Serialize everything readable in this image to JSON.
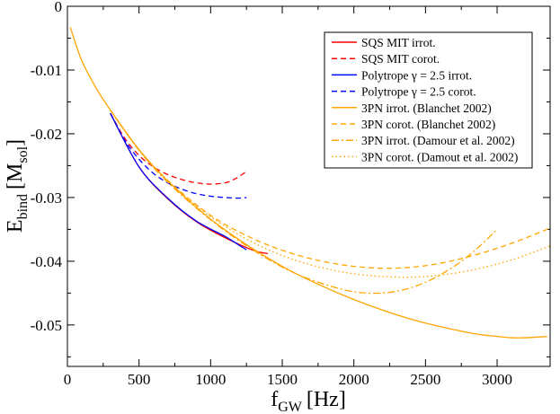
{
  "chart_data": {
    "type": "line",
    "xlabel": {
      "main": "f",
      "sub": "GW",
      "unit": "[Hz]"
    },
    "ylabel": {
      "main": "E",
      "sub": "bind",
      "unit_open": "[M",
      "unit_sub": "sol",
      "unit_close": "]"
    },
    "xlim": [
      0,
      3370
    ],
    "ylim": [
      -0.0565,
      0
    ],
    "xticks": [
      0,
      500,
      1000,
      1500,
      2000,
      2500,
      3000
    ],
    "xtick_labels": [
      "0",
      "500",
      "1000",
      "1500",
      "2000",
      "2500",
      "3000"
    ],
    "yticks": [
      0,
      -0.01,
      -0.02,
      -0.03,
      -0.04,
      -0.05
    ],
    "ytick_labels": [
      "0",
      "-0.01",
      "-0.02",
      "-0.03",
      "-0.04",
      "-0.05"
    ],
    "grid": false,
    "legend_position": "top-right",
    "series": [
      {
        "name": "SQS MIT irrot.",
        "color": "#ff0000",
        "dash": "solid",
        "x": [
          300,
          500,
          700,
          900,
          1100,
          1300,
          1400
        ],
        "y": [
          -0.0168,
          -0.0252,
          -0.0302,
          -0.0338,
          -0.0363,
          -0.0383,
          -0.0388
        ]
      },
      {
        "name": "SQS MIT corot.",
        "color": "#ff0000",
        "dash": "dashed",
        "x": [
          300,
          400,
          500,
          600,
          700,
          800,
          900,
          1000,
          1100,
          1150,
          1200,
          1250
        ],
        "y": [
          -0.0168,
          -0.0207,
          -0.0234,
          -0.0252,
          -0.0264,
          -0.0272,
          -0.0277,
          -0.0279,
          -0.0277,
          -0.0273,
          -0.0267,
          -0.0259
        ]
      },
      {
        "name": "Polytrope  γ = 2.5 irrot.",
        "color": "#0000ff",
        "dash": "solid",
        "x": [
          300,
          500,
          700,
          900,
          1100,
          1200,
          1250
        ],
        "y": [
          -0.0168,
          -0.0252,
          -0.0301,
          -0.0337,
          -0.0361,
          -0.0375,
          -0.0382
        ]
      },
      {
        "name": "Polytrope  γ = 2.5 corot.",
        "color": "#0000ff",
        "dash": "dashed",
        "x": [
          300,
          400,
          500,
          600,
          700,
          800,
          900,
          1000,
          1100,
          1200,
          1250
        ],
        "y": [
          -0.0168,
          -0.021,
          -0.024,
          -0.0262,
          -0.0277,
          -0.0287,
          -0.0294,
          -0.0298,
          -0.03,
          -0.0301,
          -0.03
        ]
      },
      {
        "name": "3PN irrot. (Blanchet 2002)",
        "color": "#ffa500",
        "dash": "solid",
        "x": [
          20,
          100,
          200,
          300,
          500,
          700,
          1000,
          1300,
          1600,
          2000,
          2400,
          2800,
          3000,
          3100,
          3200,
          3350
        ],
        "y": [
          -0.0033,
          -0.0085,
          -0.0128,
          -0.0163,
          -0.0225,
          -0.0274,
          -0.0334,
          -0.0381,
          -0.042,
          -0.046,
          -0.0491,
          -0.0512,
          -0.0518,
          -0.052,
          -0.052,
          -0.0518
        ]
      },
      {
        "name": "3PN corot. (Blanchet 2002)",
        "color": "#ffa500",
        "dash": "dashed",
        "x": [
          300,
          500,
          700,
          1000,
          1300,
          1600,
          1900,
          2200,
          2500,
          2800,
          3100,
          3370
        ],
        "y": [
          -0.0163,
          -0.0225,
          -0.0273,
          -0.0328,
          -0.0365,
          -0.039,
          -0.0405,
          -0.0411,
          -0.0407,
          -0.0393,
          -0.0372,
          -0.0348
        ]
      },
      {
        "name": "3PN irrot. (Damour et al. 2002)",
        "color": "#ffa500",
        "dash": "dashdot",
        "x": [
          300,
          500,
          700,
          1000,
          1300,
          1600,
          1900,
          2100,
          2300,
          2500,
          2700,
          2850,
          3000
        ],
        "y": [
          -0.0163,
          -0.0226,
          -0.0276,
          -0.0335,
          -0.0383,
          -0.042,
          -0.0443,
          -0.045,
          -0.0447,
          -0.0433,
          -0.0408,
          -0.0382,
          -0.035
        ]
      },
      {
        "name": "3PN corot. (Damout et al. 2002)",
        "color": "#ffa500",
        "dash": "dotted",
        "x": [
          300,
          500,
          700,
          1000,
          1300,
          1600,
          1900,
          2200,
          2500,
          2800,
          3100,
          3370
        ],
        "y": [
          -0.0163,
          -0.0225,
          -0.0274,
          -0.033,
          -0.0371,
          -0.0399,
          -0.0416,
          -0.0424,
          -0.0424,
          -0.0415,
          -0.0398,
          -0.0376
        ]
      }
    ]
  }
}
